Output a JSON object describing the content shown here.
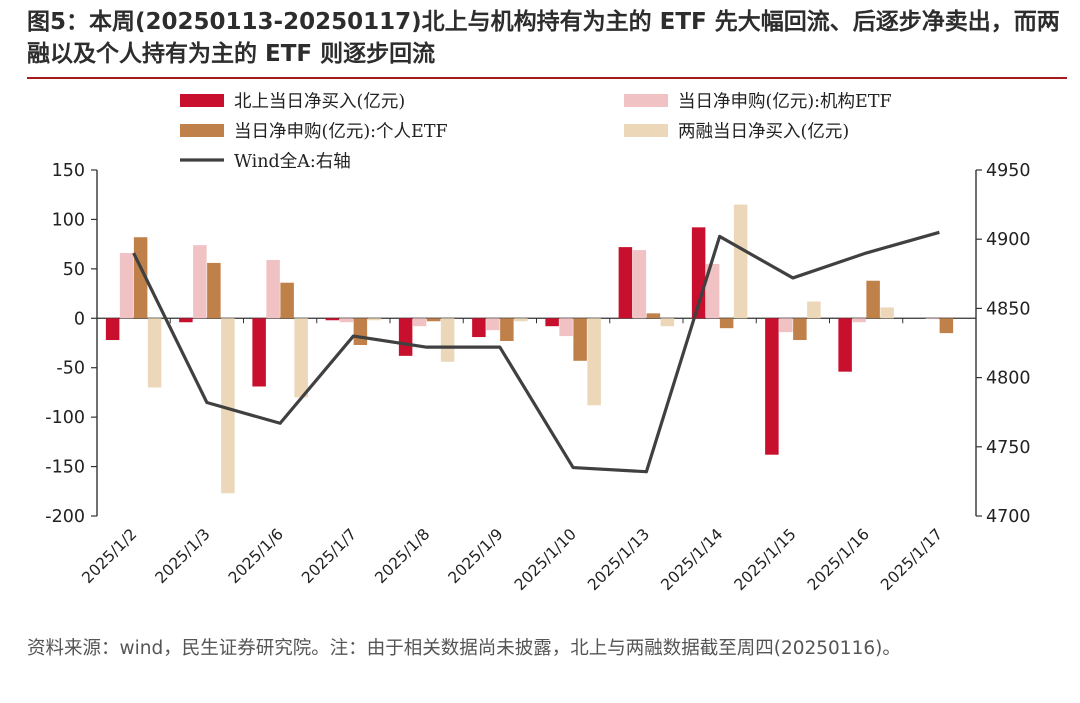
{
  "title": "图5：本周(20250113-20250117)北上与机构持有为主的 ETF 先大幅回流、后逐步净卖出，而两融以及个人持有为主的 ETF 则逐步回流",
  "note": "资料来源：wind，民生证券研究院。注：由于相关数据尚未披露，北上与两融数据截至周四(20250116)。",
  "chart_data": {
    "type": "bar+line",
    "categories": [
      "2025/1/2",
      "2025/1/3",
      "2025/1/6",
      "2025/1/7",
      "2025/1/8",
      "2025/1/9",
      "2025/1/10",
      "2025/1/13",
      "2025/1/14",
      "2025/1/15",
      "2025/1/16",
      "2025/1/17"
    ],
    "y_left": {
      "min": -200,
      "max": 150,
      "step": 50,
      "ticks": [
        "150",
        "100",
        "50",
        "0",
        "-50",
        "-100",
        "-150",
        "-200"
      ]
    },
    "y_right": {
      "min": 4700,
      "max": 4950,
      "step": 50,
      "ticks": [
        "4950",
        "4900",
        "4850",
        "4800",
        "4750",
        "4700"
      ]
    },
    "legend_position": "top",
    "series": [
      {
        "name": "北上当日净买入(亿元)",
        "type": "bar",
        "axis": "left",
        "color": "#c8102e",
        "values": [
          -22,
          -4,
          -69,
          -2,
          -38,
          -19,
          -8,
          72,
          92,
          -138,
          -54,
          null
        ]
      },
      {
        "name": "当日净申购(亿元):机构ETF",
        "type": "bar",
        "axis": "left",
        "color": "#f0c2c4",
        "values": [
          66,
          74,
          59,
          -4,
          -8,
          -12,
          -18,
          69,
          55,
          -14,
          -4,
          0
        ]
      },
      {
        "name": "当日净申购(亿元):个人ETF",
        "type": "bar",
        "axis": "left",
        "color": "#c0804a",
        "values": [
          82,
          56,
          36,
          -27,
          -3,
          -23,
          -43,
          5,
          -10,
          -22,
          38,
          -15
        ]
      },
      {
        "name": "两融当日净买入(亿元)",
        "type": "bar",
        "axis": "left",
        "color": "#ecd8b8",
        "values": [
          -70,
          -177,
          -80,
          -2,
          -44,
          -3,
          -88,
          -8,
          115,
          17,
          11,
          null
        ]
      },
      {
        "name": "Wind全A:右轴",
        "type": "line",
        "axis": "right",
        "color": "#404040",
        "values": [
          4890,
          4782,
          4767,
          4830,
          4822,
          4822,
          4735,
          4732,
          4902,
          4872,
          4890,
          4905
        ]
      }
    ]
  }
}
